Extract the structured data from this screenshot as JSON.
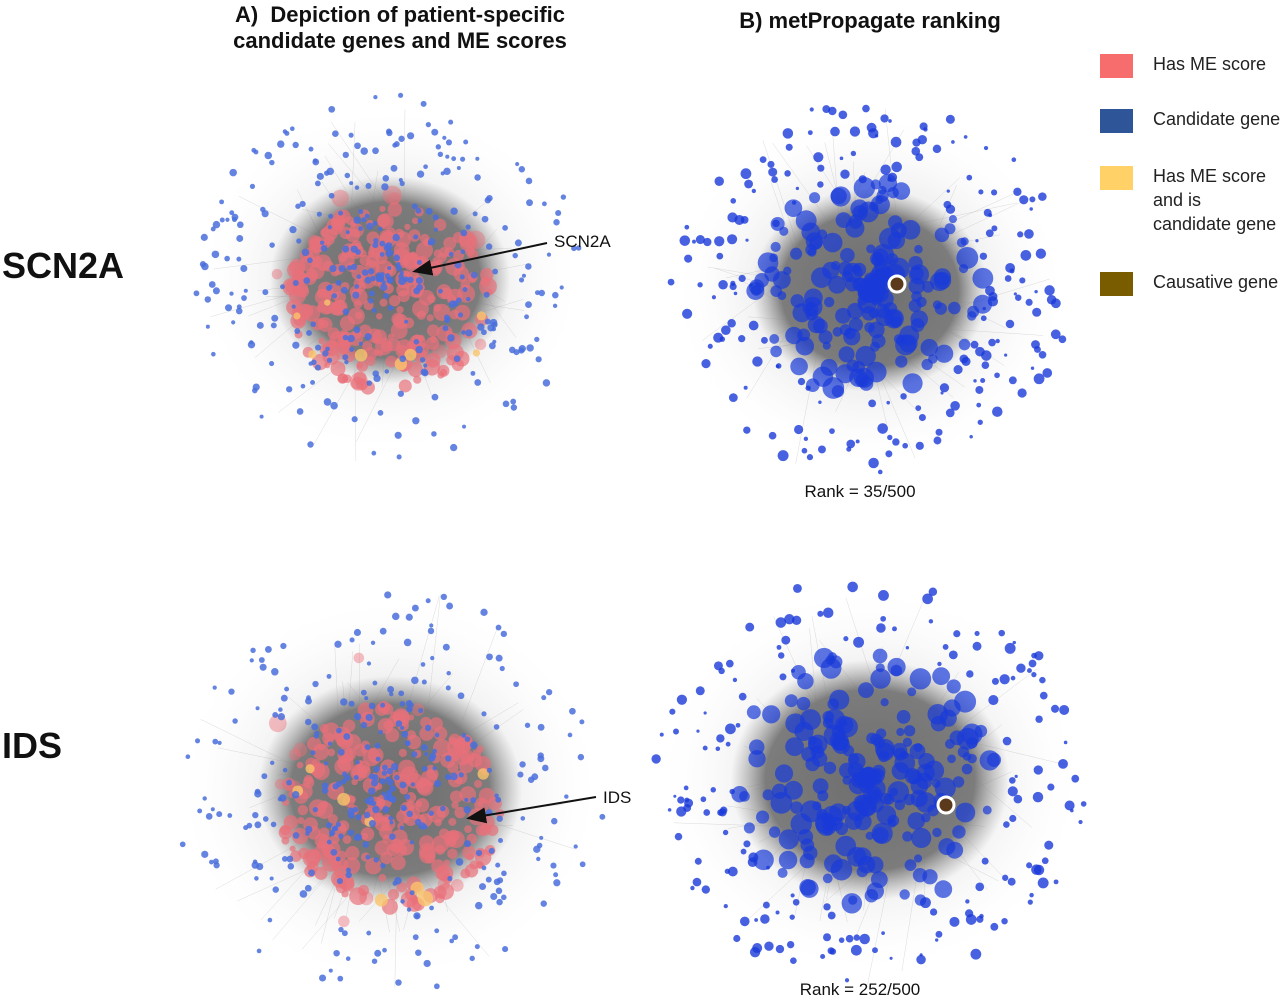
{
  "panel_a": {
    "title": "A)  Depiction of patient-specific\ncandidate genes and ME scores"
  },
  "panel_b": {
    "title": "B) metPropagate ranking"
  },
  "rows": [
    {
      "label": "SCN2A",
      "annotation": "SCN2A",
      "rank_text": "Rank = 35/500"
    },
    {
      "label": "IDS",
      "annotation": "IDS",
      "rank_text": "Rank = 252/500"
    }
  ],
  "legend": [
    {
      "label": "Has ME score",
      "color": "#f76c6c"
    },
    {
      "label": "Candidate gene",
      "color": "#2d5597"
    },
    {
      "label": "Has ME score and is candidate gene",
      "color": "#ffd166"
    },
    {
      "label": "Causative gene",
      "color": "#7a5c00"
    }
  ],
  "colors": {
    "candidate_panel_a": "#4a6fdc",
    "candidate_panel_b": "#1a3ad8",
    "me_score": "#e8707a",
    "me_and_candidate": "#f9c46b",
    "network_core": "#707070",
    "causative_marker_fill": "#5a3a1a",
    "causative_marker_ring": "#ffffff"
  }
}
